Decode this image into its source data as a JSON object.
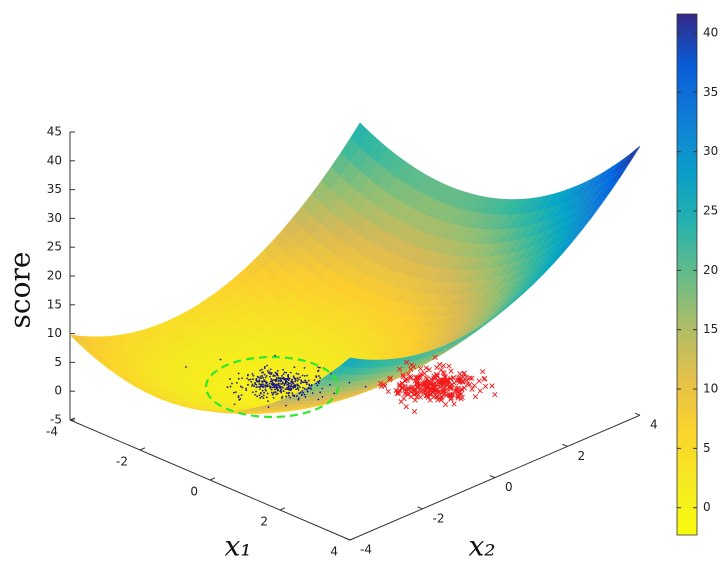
{
  "chart_data": {
    "type": "surface",
    "zlabel": "score",
    "xlabel": "x₁",
    "ylabel": "x₂",
    "xlim": [
      -4,
      4
    ],
    "xticks": [
      -4,
      -2,
      0,
      2,
      4
    ],
    "ylim": [
      -4,
      4
    ],
    "yticks": [
      -4,
      -2,
      0,
      2,
      4
    ],
    "zlim": [
      -5,
      45
    ],
    "zticks": [
      -5,
      0,
      5,
      10,
      15,
      20,
      25,
      30,
      35,
      40,
      45
    ],
    "clim": [
      -2.3,
      41.6
    ],
    "cticks": [
      0,
      5,
      10,
      15,
      20,
      25,
      30,
      35,
      40
    ],
    "colormap": "parula-reversed"
  }
}
